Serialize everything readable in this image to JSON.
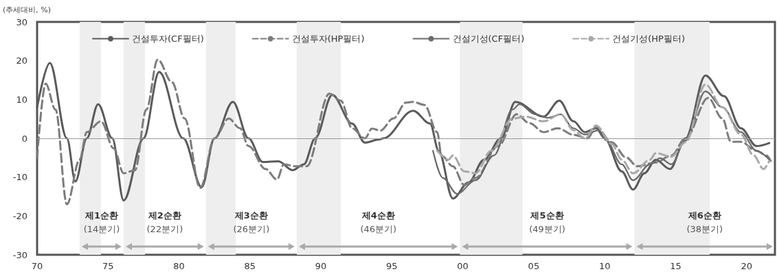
{
  "chart_data": {
    "type": "line",
    "ylabel": "(추세대비, %)",
    "xlim": [
      1970,
      2022
    ],
    "ylim": [
      -30,
      30
    ],
    "xticks": [
      {
        "value": 1970,
        "label": "70"
      },
      {
        "value": 1975,
        "label": "75"
      },
      {
        "value": 1980,
        "label": "80"
      },
      {
        "value": 1985,
        "label": "85"
      },
      {
        "value": 1990,
        "label": "90"
      },
      {
        "value": 1995,
        "label": "95"
      },
      {
        "value": 2000,
        "label": "00"
      },
      {
        "value": 2005,
        "label": "05"
      },
      {
        "value": 2010,
        "label": "10"
      },
      {
        "value": 2015,
        "label": "15"
      },
      {
        "value": 2020,
        "label": "20"
      }
    ],
    "yticks": [
      -30,
      -20,
      -10,
      0,
      10,
      20,
      30
    ],
    "grid": false,
    "legend": "top",
    "marker": "none",
    "series": [
      {
        "name": "건설투자(CF필터)",
        "color": "#5a5a5a",
        "line_style": "solid",
        "x": [
          1970,
          1970.9,
          1972.1,
          1972.7,
          1973.5,
          1974.3,
          1975.3,
          1976.1,
          1977.5,
          1978.6,
          1980.3,
          1981.6,
          1982.5,
          1983.8,
          1984.9,
          1985.9,
          1987,
          1988,
          1988.8,
          1989.6,
          1990.8,
          1992.2,
          1993.1,
          1994.1,
          1994.4,
          1996.5,
          1997.7,
          1998.3,
          1999.3,
          2000.4,
          2001.5,
          2002.7,
          2003.7,
          2005.7,
          2006.8,
          2007.8,
          2008.6,
          2009.4,
          2010,
          2011.2,
          2012,
          2012.8,
          2013.6,
          2014.6,
          2015.7,
          2017.1,
          2018.4,
          2019.6,
          2020.7,
          2021.6
        ],
        "values": [
          8,
          19.4,
          0,
          -11.1,
          0,
          8.8,
          0,
          -16,
          0,
          17.1,
          0,
          -12.6,
          0,
          9.4,
          0,
          -6.1,
          -5.9,
          -8.2,
          -6.7,
          0,
          11.2,
          3.8,
          -1.1,
          -0.3,
          0,
          7.1,
          3.8,
          -3.2,
          -15.5,
          -11.4,
          -5.5,
          0,
          9.4,
          5.6,
          9.7,
          4.4,
          1.6,
          2.6,
          0,
          -8.5,
          -13.2,
          -9,
          -5.5,
          -7.9,
          0,
          16.2,
          10.9,
          2.6,
          -2,
          -1.2
        ]
      },
      {
        "name": "건설투자(HP필터)",
        "color": "#7c7c7c",
        "line_style": "dashed",
        "x": [
          1970,
          1970.6,
          1971.3,
          1972.1,
          1973,
          1973.5,
          1974.5,
          1975.4,
          1976.1,
          1976.9,
          1977.7,
          1978.5,
          1979.5,
          1980.4,
          1981.5,
          1982.5,
          1983.5,
          1984.3,
          1984.9,
          1986.1,
          1986.9,
          1987.4,
          1988.2,
          1989,
          1990.6,
          1991.4,
          1992.2,
          1993.1,
          1993.6,
          1994.2,
          1995.1,
          1996,
          1996.5,
          1997.3,
          1998.2,
          1998.5,
          1999.3,
          2000.1,
          2000.9,
          2002.5,
          2003.8,
          2004.7,
          2005.7,
          2006.7,
          2007.8,
          2008.8,
          2009.4,
          2010.5,
          2011.5,
          2012.3,
          2013.6,
          2014.7,
          2015.7,
          2017.3,
          2018.3,
          2018.9,
          2019.6,
          2020.7,
          2021.4,
          2021.7
        ],
        "values": [
          -5,
          14.1,
          7.4,
          -17,
          -5.5,
          1.6,
          4.4,
          -2.6,
          -9,
          -8.2,
          7.4,
          20.3,
          14.5,
          5.1,
          -12.8,
          0,
          5.1,
          2.6,
          -2,
          -7.9,
          -10.6,
          -6.7,
          -7.2,
          -7.2,
          11.5,
          9.7,
          2.6,
          0,
          2.5,
          2,
          5.1,
          9.2,
          9.4,
          8.6,
          1.6,
          -4.4,
          -7.2,
          -12,
          -10.2,
          -2,
          6.2,
          3.9,
          1.6,
          2.6,
          0.9,
          0,
          3,
          -1,
          -4.9,
          -7.2,
          -6.2,
          -4.4,
          0,
          10.4,
          5.1,
          -0.9,
          -0.9,
          -3.2,
          -4.4,
          -5.8
        ]
      },
      {
        "name": "건설기성(CF필터)",
        "color": "#6a6a6a",
        "line_style": "solid",
        "x": [
          1997.9,
          1998.6,
          1999.6,
          2000.9,
          2002.2,
          2003.5,
          2004,
          2005.1,
          2006,
          2006.9,
          2007.8,
          2008.6,
          2009.6,
          2010.1,
          2011.2,
          2012,
          2013.2,
          2013.9,
          2014.7,
          2015.7,
          2017.1,
          2018.3,
          2019.6,
          2020.7,
          2021.6
        ],
        "values": [
          -3.2,
          -10.2,
          -14.3,
          -10.8,
          -4.4,
          7.4,
          8.8,
          6.2,
          5.3,
          6.2,
          2.6,
          1,
          2.1,
          -0.5,
          -6.7,
          -10.8,
          -6.7,
          -5.1,
          -6.7,
          -0.6,
          12.1,
          8,
          1.6,
          -3.2,
          -5.5
        ]
      },
      {
        "name": "건설기성(HP필터)",
        "color": "#a8a8a8",
        "line_style": "dashed",
        "x": [
          1998.2,
          1999,
          1999.3,
          2000.1,
          2000.9,
          2002,
          2003.5,
          2004.4,
          2005.7,
          2006.9,
          2007.8,
          2008.6,
          2009.4,
          2010.5,
          2011.2,
          2012,
          2013.2,
          2013.6,
          2014.7,
          2015.7,
          2017.1,
          2018.3,
          2019.6,
          2020.5,
          2021.2,
          2021.6
        ],
        "values": [
          -3.2,
          -5.5,
          -4.4,
          -8.5,
          -9,
          -3.2,
          5.1,
          5.6,
          4.4,
          6.2,
          2.1,
          0,
          3.3,
          -1.5,
          -5.5,
          -9,
          -5.5,
          -3.8,
          -4.7,
          -1,
          13.9,
          8,
          1,
          -4.4,
          -7.9,
          -5.8
        ]
      }
    ],
    "ref_lines": [
      {
        "axis": "y",
        "value": 0,
        "color": "#999999"
      }
    ],
    "bands": [
      {
        "axis": "x",
        "from": 1973,
        "to": 1974.5,
        "color": "#eeeeee"
      },
      {
        "axis": "x",
        "from": 1976.1,
        "to": 1977.6,
        "color": "#eeeeee"
      },
      {
        "axis": "x",
        "from": 1981.9,
        "to": 1984,
        "color": "#eeeeee"
      },
      {
        "axis": "x",
        "from": 1988.3,
        "to": 1991.4,
        "color": "#eeeeee"
      },
      {
        "axis": "x",
        "from": 1999.8,
        "to": 2004.2,
        "color": "#eeeeee"
      },
      {
        "axis": "x",
        "from": 2012.1,
        "to": 2017.4,
        "color": "#eeeeee"
      }
    ],
    "annotations": [
      "제1순환",
      "(14분기)",
      "제2순환",
      "(22분기)",
      "제3순환",
      "(26분기)",
      "제4순환",
      "(46분기)",
      "제5순환",
      "(49분기)",
      "제6순환",
      "(38분기)"
    ]
  }
}
